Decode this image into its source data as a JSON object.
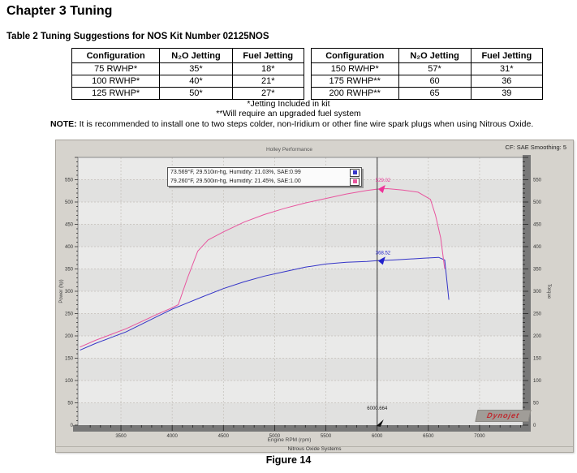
{
  "page": {
    "chapter_title": "Chapter 3 Tuning",
    "table_caption": "Table 2 Tuning Suggestions for NOS Kit Number 02125NOS",
    "footnote1": "*Jetting Included in kit",
    "footnote2": "**Will require an upgraded fuel system",
    "note_label": "NOTE:",
    "note_text": " It is recommended to install one to two steps colder, non-Iridium or other fine wire spark plugs when using Nitrous Oxide.",
    "figure_caption": "Figure 14"
  },
  "tables": {
    "headers": [
      "Configuration",
      "N₂O Jetting",
      "Fuel Jetting"
    ],
    "left_rows": [
      [
        "75 RWHP*",
        "35*",
        "18*"
      ],
      [
        "100 RWHP*",
        "40*",
        "21*"
      ],
      [
        "125 RWHP*",
        "50*",
        "27*"
      ]
    ],
    "right_rows": [
      [
        "150 RWHP*",
        "57*",
        "31*"
      ],
      [
        "175 RWHP**",
        "60",
        "36"
      ],
      [
        "200 RWHP**",
        "65",
        "39"
      ]
    ]
  },
  "chart_data": {
    "type": "line",
    "title": "Holley Performance",
    "corner_label": "CF: SAE Smoothing: 5",
    "xlabel": "Engine RPM (rpm)",
    "ylabel_left": "Power (hp)",
    "ylabel_right": "Torque",
    "bottom_label": "Nitrous Oxide Systems",
    "watermark": "Dynojet",
    "grid": true,
    "legend_position": "top-center-left",
    "xlim": [
      3080,
      7420
    ],
    "ylim": [
      0,
      600
    ],
    "x_ticks": [
      3500,
      4000,
      4500,
      5000,
      5500,
      6000,
      6500,
      7000
    ],
    "y_tick_step": 50,
    "y_tick_max": 550,
    "colors": {
      "window_bg": "#d6d3cd",
      "band_dark": "#e1e1e0",
      "band_light": "#eaeae9",
      "grid": "#c3bfb9",
      "axis_bar": "#787878",
      "cursor": "#333333",
      "blue_series": "#3535c8",
      "pink_series": "#e8559e"
    },
    "legend": [
      {
        "label": "73.569°F, 29.510in-hg, Humidity: 21.03%, SAE:0.99",
        "color": "#3535c8"
      },
      {
        "label": "79.260°F, 29.500in-hg, Humidity: 21.45%, SAE:1.00",
        "color": "#e8559e"
      }
    ],
    "cursor": {
      "x": 6000.664,
      "x_label": "6000.664",
      "pink_value": 529.02,
      "pink_label": "529.02",
      "blue_value": 368.52,
      "blue_label": "368.52"
    },
    "series": [
      {
        "name": "baseline-run-sae-0.99",
        "color": "#3535c8",
        "points": [
          [
            3100,
            168
          ],
          [
            3250,
            183
          ],
          [
            3400,
            196
          ],
          [
            3550,
            209
          ],
          [
            3700,
            226
          ],
          [
            3850,
            243
          ],
          [
            4000,
            260
          ],
          [
            4150,
            274
          ],
          [
            4300,
            288
          ],
          [
            4500,
            306
          ],
          [
            4700,
            321
          ],
          [
            4900,
            334
          ],
          [
            5100,
            344
          ],
          [
            5300,
            354
          ],
          [
            5500,
            361
          ],
          [
            5700,
            365
          ],
          [
            5900,
            367
          ],
          [
            6000,
            368.5
          ],
          [
            6150,
            370
          ],
          [
            6300,
            372
          ],
          [
            6450,
            374
          ],
          [
            6600,
            376
          ],
          [
            6660,
            370
          ],
          [
            6700,
            281
          ]
        ]
      },
      {
        "name": "nitrous-run-sae-1.00",
        "color": "#e8559e",
        "points": [
          [
            3100,
            175
          ],
          [
            3250,
            190
          ],
          [
            3400,
            203
          ],
          [
            3550,
            216
          ],
          [
            3700,
            232
          ],
          [
            3850,
            248
          ],
          [
            4000,
            263
          ],
          [
            4060,
            270
          ],
          [
            4150,
            330
          ],
          [
            4250,
            390
          ],
          [
            4350,
            415
          ],
          [
            4500,
            433
          ],
          [
            4700,
            455
          ],
          [
            4900,
            472
          ],
          [
            5100,
            486
          ],
          [
            5300,
            498
          ],
          [
            5500,
            508
          ],
          [
            5700,
            518
          ],
          [
            5900,
            526
          ],
          [
            6000,
            529
          ],
          [
            6100,
            530
          ],
          [
            6250,
            527
          ],
          [
            6400,
            522
          ],
          [
            6520,
            506
          ],
          [
            6570,
            470
          ],
          [
            6620,
            420
          ],
          [
            6660,
            350
          ]
        ]
      }
    ]
  }
}
